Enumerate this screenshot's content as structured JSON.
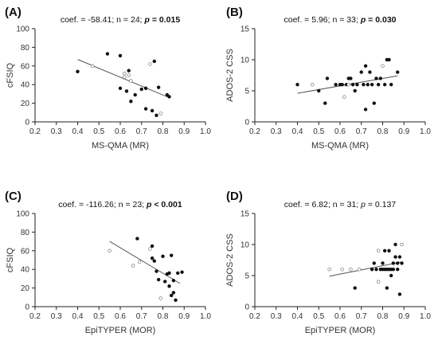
{
  "chart_data": [
    {
      "id": "A",
      "type": "scatter",
      "panel_label": "(A)",
      "stats": {
        "coef": "coef. = -58.41",
        "n": "n = 24",
        "p": "p = 0.015",
        "p_bold": true
      },
      "xlabel": "MS-QMA (MR)",
      "ylabel": "cFSIQ",
      "xlim": [
        0.2,
        1.0
      ],
      "ylim": [
        0,
        100
      ],
      "xticks": [
        "0.2",
        "0.3",
        "0.4",
        "0.5",
        "0.6",
        "0.7",
        "0.8",
        "0.9",
        "1.0"
      ],
      "yticks": [
        "0",
        "20",
        "40",
        "60",
        "80",
        "100"
      ],
      "regression": {
        "x": [
          0.4,
          0.83
        ],
        "y": [
          67,
          26
        ]
      },
      "points": [
        {
          "x": 0.4,
          "y": 54,
          "f": 1
        },
        {
          "x": 0.47,
          "y": 60,
          "f": 0
        },
        {
          "x": 0.54,
          "y": 73,
          "f": 1
        },
        {
          "x": 0.6,
          "y": 71,
          "f": 1
        },
        {
          "x": 0.6,
          "y": 36,
          "f": 1
        },
        {
          "x": 0.62,
          "y": 52,
          "f": 0
        },
        {
          "x": 0.62,
          "y": 48,
          "f": 0
        },
        {
          "x": 0.63,
          "y": 33,
          "f": 1
        },
        {
          "x": 0.64,
          "y": 55,
          "f": 1
        },
        {
          "x": 0.64,
          "y": 50,
          "f": 0
        },
        {
          "x": 0.65,
          "y": 44,
          "f": 0
        },
        {
          "x": 0.65,
          "y": 22,
          "f": 1
        },
        {
          "x": 0.67,
          "y": 29,
          "f": 1
        },
        {
          "x": 0.7,
          "y": 35,
          "f": 1
        },
        {
          "x": 0.72,
          "y": 14,
          "f": 1
        },
        {
          "x": 0.72,
          "y": 36,
          "f": 1
        },
        {
          "x": 0.74,
          "y": 62,
          "f": 0
        },
        {
          "x": 0.75,
          "y": 12,
          "f": 1
        },
        {
          "x": 0.76,
          "y": 65,
          "f": 1
        },
        {
          "x": 0.77,
          "y": 7,
          "f": 1
        },
        {
          "x": 0.78,
          "y": 37,
          "f": 1
        },
        {
          "x": 0.79,
          "y": 9,
          "f": 0
        },
        {
          "x": 0.82,
          "y": 29,
          "f": 1
        },
        {
          "x": 0.83,
          "y": 27,
          "f": 1
        }
      ]
    },
    {
      "id": "B",
      "type": "scatter",
      "panel_label": "(B)",
      "stats": {
        "coef": "coef. = 5.96",
        "n": "n = 33",
        "p": "p = 0.030",
        "p_bold": true
      },
      "xlabel": "MS-QMA (MR)",
      "ylabel": "ADOS-2 CSS",
      "xlim": [
        0.2,
        1.0
      ],
      "ylim": [
        0,
        15
      ],
      "xticks": [
        "0.2",
        "0.3",
        "0.4",
        "0.5",
        "0.6",
        "0.7",
        "0.8",
        "0.9",
        "1.0"
      ],
      "yticks": [
        "0",
        "5",
        "10",
        "15"
      ],
      "regression": {
        "x": [
          0.4,
          0.87
        ],
        "y": [
          4.6,
          7.4
        ]
      },
      "points": [
        {
          "x": 0.4,
          "y": 6,
          "f": 1
        },
        {
          "x": 0.47,
          "y": 6,
          "f": 0
        },
        {
          "x": 0.5,
          "y": 5,
          "f": 1
        },
        {
          "x": 0.53,
          "y": 3,
          "f": 1
        },
        {
          "x": 0.54,
          "y": 7,
          "f": 1
        },
        {
          "x": 0.58,
          "y": 6,
          "f": 1
        },
        {
          "x": 0.6,
          "y": 6,
          "f": 1
        },
        {
          "x": 0.61,
          "y": 6,
          "f": 1
        },
        {
          "x": 0.62,
          "y": 4,
          "f": 0
        },
        {
          "x": 0.63,
          "y": 6,
          "f": 1
        },
        {
          "x": 0.64,
          "y": 6,
          "f": 0
        },
        {
          "x": 0.64,
          "y": 7,
          "f": 1
        },
        {
          "x": 0.65,
          "y": 7,
          "f": 1
        },
        {
          "x": 0.66,
          "y": 6,
          "f": 1
        },
        {
          "x": 0.67,
          "y": 5,
          "f": 1
        },
        {
          "x": 0.68,
          "y": 6,
          "f": 1
        },
        {
          "x": 0.7,
          "y": 8,
          "f": 1
        },
        {
          "x": 0.71,
          "y": 6,
          "f": 1
        },
        {
          "x": 0.72,
          "y": 9,
          "f": 1
        },
        {
          "x": 0.72,
          "y": 2,
          "f": 1
        },
        {
          "x": 0.73,
          "y": 6,
          "f": 1
        },
        {
          "x": 0.74,
          "y": 8,
          "f": 1
        },
        {
          "x": 0.75,
          "y": 6,
          "f": 1
        },
        {
          "x": 0.76,
          "y": 3,
          "f": 1
        },
        {
          "x": 0.77,
          "y": 7,
          "f": 1
        },
        {
          "x": 0.78,
          "y": 6,
          "f": 1
        },
        {
          "x": 0.79,
          "y": 7,
          "f": 1
        },
        {
          "x": 0.8,
          "y": 9,
          "f": 0
        },
        {
          "x": 0.81,
          "y": 6,
          "f": 1
        },
        {
          "x": 0.82,
          "y": 10,
          "f": 1
        },
        {
          "x": 0.83,
          "y": 10,
          "f": 1
        },
        {
          "x": 0.84,
          "y": 6,
          "f": 1
        },
        {
          "x": 0.87,
          "y": 8,
          "f": 1
        }
      ]
    },
    {
      "id": "C",
      "type": "scatter",
      "panel_label": "(C)",
      "stats": {
        "coef": "coef. = -116.26",
        "n": "n = 23",
        "p": "p < 0.001",
        "p_bold": true
      },
      "xlabel": "EpiTYPER (MOR)",
      "ylabel": "cFSIQ",
      "xlim": [
        0.2,
        1.0
      ],
      "ylim": [
        0,
        100
      ],
      "xticks": [
        "0.2",
        "0.3",
        "0.4",
        "0.5",
        "0.6",
        "0.7",
        "0.8",
        "0.9",
        "1.0"
      ],
      "yticks": [
        "0",
        "20",
        "40",
        "60",
        "80",
        "100"
      ],
      "regression": {
        "x": [
          0.55,
          0.88
        ],
        "y": [
          70,
          25
        ]
      },
      "points": [
        {
          "x": 0.55,
          "y": 60,
          "f": 0
        },
        {
          "x": 0.66,
          "y": 44,
          "f": 0
        },
        {
          "x": 0.68,
          "y": 73,
          "f": 1
        },
        {
          "x": 0.69,
          "y": 48,
          "f": 0
        },
        {
          "x": 0.74,
          "y": 62,
          "f": 0
        },
        {
          "x": 0.75,
          "y": 65,
          "f": 1
        },
        {
          "x": 0.75,
          "y": 52,
          "f": 1
        },
        {
          "x": 0.76,
          "y": 49,
          "f": 1
        },
        {
          "x": 0.77,
          "y": 38,
          "f": 1
        },
        {
          "x": 0.78,
          "y": 29,
          "f": 1
        },
        {
          "x": 0.79,
          "y": 9,
          "f": 0
        },
        {
          "x": 0.8,
          "y": 54,
          "f": 1
        },
        {
          "x": 0.81,
          "y": 27,
          "f": 1
        },
        {
          "x": 0.82,
          "y": 35,
          "f": 1
        },
        {
          "x": 0.83,
          "y": 36,
          "f": 1
        },
        {
          "x": 0.83,
          "y": 22,
          "f": 1
        },
        {
          "x": 0.84,
          "y": 12,
          "f": 1
        },
        {
          "x": 0.84,
          "y": 55,
          "f": 1
        },
        {
          "x": 0.85,
          "y": 15,
          "f": 1
        },
        {
          "x": 0.85,
          "y": 28,
          "f": 1
        },
        {
          "x": 0.86,
          "y": 7,
          "f": 1
        },
        {
          "x": 0.87,
          "y": 36,
          "f": 1
        },
        {
          "x": 0.89,
          "y": 37,
          "f": 1
        }
      ]
    },
    {
      "id": "D",
      "type": "scatter",
      "panel_label": "(D)",
      "stats": {
        "coef": "coef. = 6.82",
        "n": "n = 31",
        "p": "p = 0.137",
        "p_bold": false
      },
      "xlabel": "EpiTYPER (MOR)",
      "ylabel": "ADOS-2 CSS",
      "xlim": [
        0.2,
        1.0
      ],
      "ylim": [
        0,
        15
      ],
      "xticks": [
        "0.2",
        "0.3",
        "0.4",
        "0.5",
        "0.6",
        "0.7",
        "0.8",
        "0.9",
        "1.0"
      ],
      "yticks": [
        "0",
        "5",
        "10",
        "15"
      ],
      "regression": {
        "x": [
          0.55,
          0.89
        ],
        "y": [
          4.9,
          7.2
        ]
      },
      "points": [
        {
          "x": 0.55,
          "y": 6,
          "f": 0
        },
        {
          "x": 0.61,
          "y": 6,
          "f": 0
        },
        {
          "x": 0.65,
          "y": 6,
          "f": 0
        },
        {
          "x": 0.67,
          "y": 3,
          "f": 1
        },
        {
          "x": 0.69,
          "y": 6,
          "f": 0
        },
        {
          "x": 0.75,
          "y": 6,
          "f": 1
        },
        {
          "x": 0.76,
          "y": 7,
          "f": 1
        },
        {
          "x": 0.77,
          "y": 6,
          "f": 1
        },
        {
          "x": 0.78,
          "y": 9,
          "f": 0
        },
        {
          "x": 0.78,
          "y": 4,
          "f": 0
        },
        {
          "x": 0.79,
          "y": 6,
          "f": 1
        },
        {
          "x": 0.8,
          "y": 7,
          "f": 1
        },
        {
          "x": 0.81,
          "y": 6,
          "f": 1
        },
        {
          "x": 0.81,
          "y": 9,
          "f": 1
        },
        {
          "x": 0.82,
          "y": 3,
          "f": 1
        },
        {
          "x": 0.82,
          "y": 6,
          "f": 1
        },
        {
          "x": 0.83,
          "y": 6,
          "f": 1
        },
        {
          "x": 0.83,
          "y": 9,
          "f": 1
        },
        {
          "x": 0.84,
          "y": 6,
          "f": 1
        },
        {
          "x": 0.84,
          "y": 5,
          "f": 1
        },
        {
          "x": 0.85,
          "y": 7,
          "f": 1
        },
        {
          "x": 0.85,
          "y": 6,
          "f": 1
        },
        {
          "x": 0.86,
          "y": 10,
          "f": 1
        },
        {
          "x": 0.86,
          "y": 8,
          "f": 1
        },
        {
          "x": 0.87,
          "y": 6,
          "f": 1
        },
        {
          "x": 0.87,
          "y": 7,
          "f": 1
        },
        {
          "x": 0.88,
          "y": 8,
          "f": 1
        },
        {
          "x": 0.88,
          "y": 2,
          "f": 1
        },
        {
          "x": 0.89,
          "y": 7,
          "f": 1
        },
        {
          "x": 0.89,
          "y": 10,
          "f": 0
        },
        {
          "x": 0.8,
          "y": 6,
          "f": 1
        }
      ]
    }
  ]
}
